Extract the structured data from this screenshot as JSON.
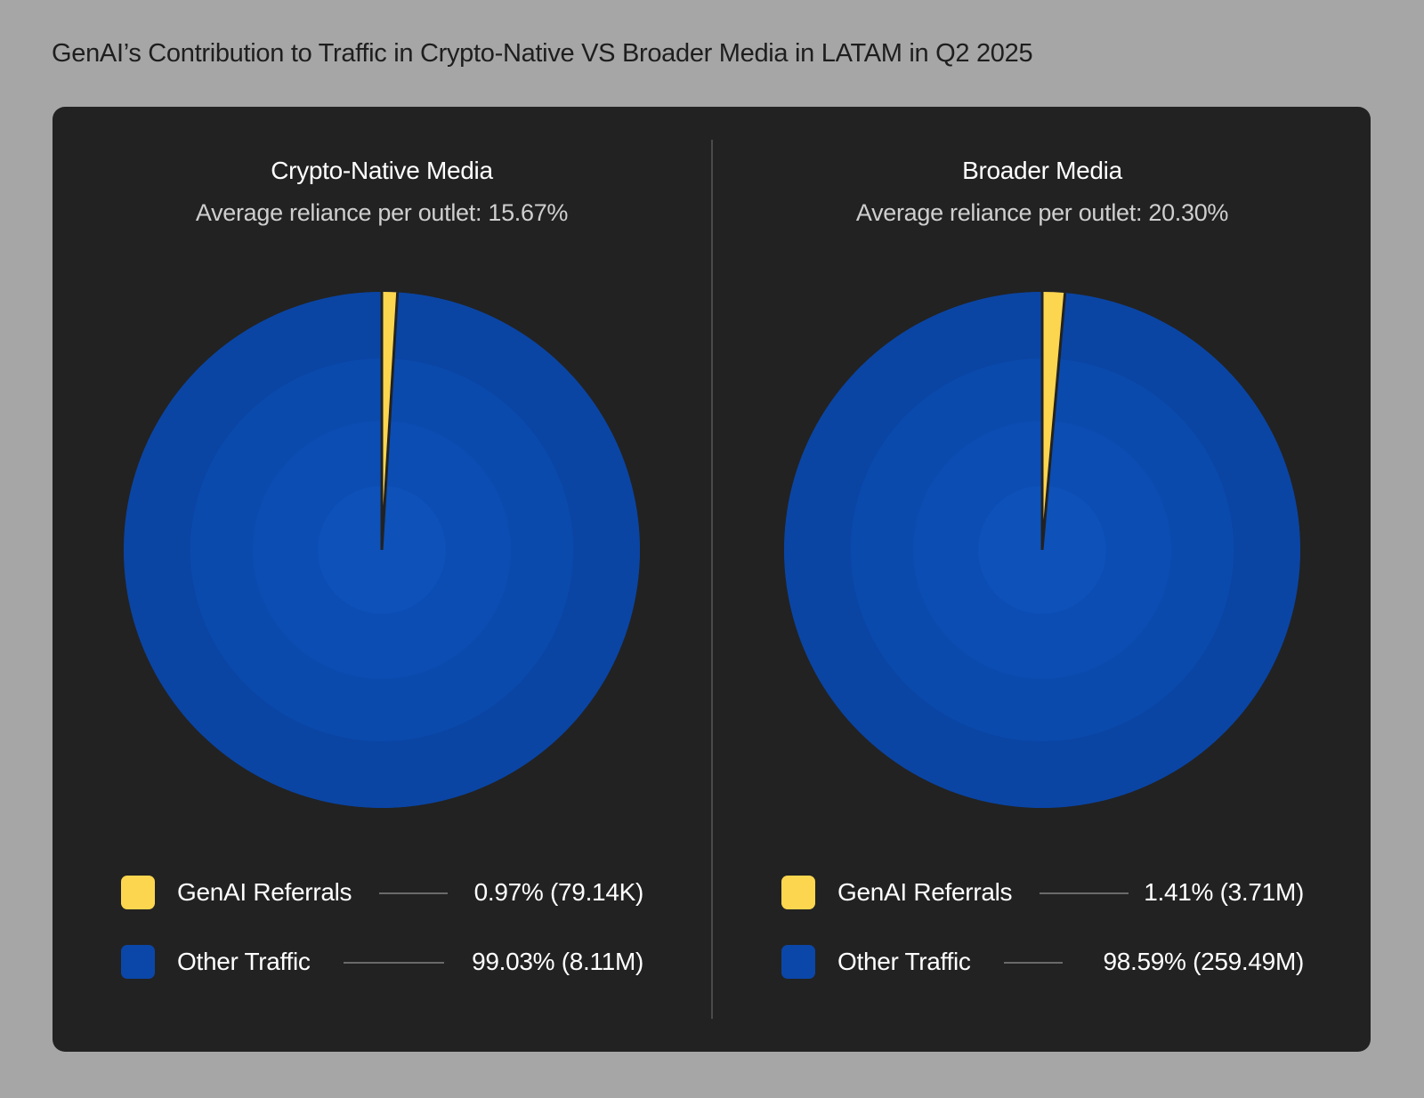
{
  "page_title": "GenAI’s Contribution to Traffic in Crypto-Native VS Broader Media in LATAM in Q2 2025",
  "colors": {
    "genai": "#fdd64f",
    "other": "#0b47a8",
    "panel": "#222222",
    "background": "#a6a6a6"
  },
  "chart_data": [
    {
      "type": "pie",
      "title": "Crypto-Native Media",
      "subtitle": "Average reliance per outlet: 15.67%",
      "slices": [
        {
          "name": "GenAI Referrals",
          "value": 0.97,
          "label": "0.97% (79.14K)",
          "color": "#fdd64f"
        },
        {
          "name": "Other Traffic",
          "value": 99.03,
          "label": "99.03% (8.11M)",
          "color": "#0b47a8"
        }
      ]
    },
    {
      "type": "pie",
      "title": "Broader Media",
      "subtitle": "Average reliance per outlet: 20.30%",
      "slices": [
        {
          "name": "GenAI Referrals",
          "value": 1.41,
          "label": "1.41% (3.71M)",
          "color": "#fdd64f"
        },
        {
          "name": "Other Traffic",
          "value": 98.59,
          "label": "98.59% (259.49M)",
          "color": "#0b47a8"
        }
      ]
    }
  ]
}
